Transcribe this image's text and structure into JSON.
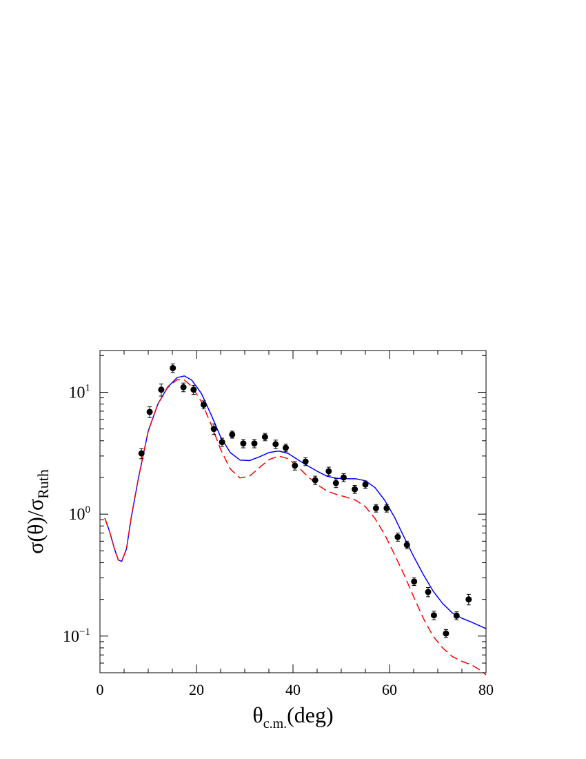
{
  "chart_data": {
    "type": "scatter",
    "xlabel": {
      "main": "θ",
      "sub": "c.m.",
      "suffix": "(deg)"
    },
    "ylabel": {
      "main": "σ(θ)/σ",
      "sub": "Ruth"
    },
    "xlim": [
      0,
      80
    ],
    "ylim": [
      0.05,
      22
    ],
    "yscale": "log",
    "grid": false,
    "x_ticks": [
      {
        "value": 0,
        "label": "0"
      },
      {
        "value": 20,
        "label": "20"
      },
      {
        "value": 40,
        "label": "40"
      },
      {
        "value": 60,
        "label": "60"
      },
      {
        "value": 80,
        "label": "80"
      }
    ],
    "y_ticks": [
      {
        "value": 0.1,
        "base": "10",
        "exp": "−1"
      },
      {
        "value": 1,
        "base": "10",
        "exp": "0"
      },
      {
        "value": 10,
        "base": "10",
        "exp": "1"
      }
    ],
    "series": [
      {
        "kind": "points",
        "color": "#000000",
        "points": [
          {
            "x": 8.6,
            "y": 3.15,
            "err": 0.3
          },
          {
            "x": 10.3,
            "y": 6.9,
            "err": 0.7
          },
          {
            "x": 12.7,
            "y": 10.5,
            "err": 1.2
          },
          {
            "x": 15.1,
            "y": 15.8,
            "err": 1.3
          },
          {
            "x": 17.3,
            "y": 11.0,
            "err": 0.9
          },
          {
            "x": 19.4,
            "y": 10.5,
            "err": 0.9
          },
          {
            "x": 21.5,
            "y": 7.9,
            "err": 0.6
          },
          {
            "x": 23.6,
            "y": 5.0,
            "err": 0.5
          },
          {
            "x": 25.3,
            "y": 3.9,
            "err": 0.3
          },
          {
            "x": 27.4,
            "y": 4.5,
            "err": 0.3
          },
          {
            "x": 29.7,
            "y": 3.8,
            "err": 0.3
          },
          {
            "x": 32.0,
            "y": 3.8,
            "err": 0.3
          },
          {
            "x": 34.2,
            "y": 4.3,
            "err": 0.3
          },
          {
            "x": 36.4,
            "y": 3.75,
            "err": 0.3
          },
          {
            "x": 38.5,
            "y": 3.5,
            "err": 0.25
          },
          {
            "x": 40.4,
            "y": 2.5,
            "err": 0.2
          },
          {
            "x": 42.6,
            "y": 2.7,
            "err": 0.2
          },
          {
            "x": 44.6,
            "y": 1.9,
            "err": 0.15
          },
          {
            "x": 47.4,
            "y": 2.25,
            "err": 0.18
          },
          {
            "x": 48.9,
            "y": 1.8,
            "err": 0.15
          },
          {
            "x": 50.5,
            "y": 2.0,
            "err": 0.15
          },
          {
            "x": 52.8,
            "y": 1.6,
            "err": 0.12
          },
          {
            "x": 55.0,
            "y": 1.75,
            "err": 0.12
          },
          {
            "x": 57.2,
            "y": 1.12,
            "err": 0.08
          },
          {
            "x": 59.4,
            "y": 1.12,
            "err": 0.08
          },
          {
            "x": 61.7,
            "y": 0.65,
            "err": 0.05
          },
          {
            "x": 63.6,
            "y": 0.56,
            "err": 0.04
          },
          {
            "x": 65.1,
            "y": 0.28,
            "err": 0.02
          },
          {
            "x": 68.0,
            "y": 0.23,
            "err": 0.02
          },
          {
            "x": 69.2,
            "y": 0.148,
            "err": 0.012
          },
          {
            "x": 71.7,
            "y": 0.105,
            "err": 0.008
          },
          {
            "x": 73.9,
            "y": 0.147,
            "err": 0.011
          },
          {
            "x": 76.4,
            "y": 0.2,
            "err": 0.02
          }
        ]
      },
      {
        "kind": "line",
        "color": "#0000ff",
        "dash": "solid",
        "points": [
          [
            1,
            0.93
          ],
          [
            2,
            0.72
          ],
          [
            3,
            0.52
          ],
          [
            3.8,
            0.42
          ],
          [
            4.5,
            0.41
          ],
          [
            5.5,
            0.52
          ],
          [
            6.5,
            0.95
          ],
          [
            8,
            2.0
          ],
          [
            10,
            4.8
          ],
          [
            12,
            8.0
          ],
          [
            14,
            11.0
          ],
          [
            16,
            13.2
          ],
          [
            17.5,
            13.6
          ],
          [
            19,
            12.6
          ],
          [
            21,
            9.8
          ],
          [
            23,
            6.6
          ],
          [
            25,
            4.3
          ],
          [
            27,
            3.2
          ],
          [
            29,
            2.78
          ],
          [
            31,
            2.75
          ],
          [
            33,
            2.95
          ],
          [
            35,
            3.2
          ],
          [
            37,
            3.3
          ],
          [
            39,
            3.15
          ],
          [
            41,
            2.8
          ],
          [
            43,
            2.5
          ],
          [
            45,
            2.25
          ],
          [
            47,
            2.05
          ],
          [
            49,
            1.97
          ],
          [
            51,
            1.95
          ],
          [
            53,
            1.95
          ],
          [
            55,
            1.88
          ],
          [
            57,
            1.65
          ],
          [
            59,
            1.3
          ],
          [
            61,
            0.95
          ],
          [
            63,
            0.65
          ],
          [
            65,
            0.45
          ],
          [
            67,
            0.32
          ],
          [
            69,
            0.235
          ],
          [
            71,
            0.185
          ],
          [
            73,
            0.155
          ],
          [
            75,
            0.14
          ],
          [
            77,
            0.13
          ],
          [
            80,
            0.115
          ]
        ]
      },
      {
        "kind": "line",
        "color": "#ff0000",
        "dash": "dashed",
        "points": [
          [
            1,
            0.93
          ],
          [
            2,
            0.72
          ],
          [
            3,
            0.52
          ],
          [
            3.8,
            0.42
          ],
          [
            4.5,
            0.41
          ],
          [
            5.5,
            0.52
          ],
          [
            6.5,
            0.95
          ],
          [
            8,
            2.0
          ],
          [
            10,
            4.8
          ],
          [
            12,
            8.0
          ],
          [
            14,
            10.9
          ],
          [
            16,
            12.7
          ],
          [
            17.5,
            12.6
          ],
          [
            19,
            11.2
          ],
          [
            21,
            8.4
          ],
          [
            23,
            5.5
          ],
          [
            25,
            3.4
          ],
          [
            27,
            2.35
          ],
          [
            29,
            1.98
          ],
          [
            31,
            2.05
          ],
          [
            33,
            2.4
          ],
          [
            35,
            2.8
          ],
          [
            37,
            3.0
          ],
          [
            39,
            2.85
          ],
          [
            41,
            2.45
          ],
          [
            43,
            2.05
          ],
          [
            45,
            1.75
          ],
          [
            47,
            1.55
          ],
          [
            49,
            1.45
          ],
          [
            51,
            1.38
          ],
          [
            53,
            1.3
          ],
          [
            55,
            1.15
          ],
          [
            57,
            0.92
          ],
          [
            59,
            0.68
          ],
          [
            61,
            0.47
          ],
          [
            63,
            0.32
          ],
          [
            65,
            0.21
          ],
          [
            67,
            0.14
          ],
          [
            69,
            0.1
          ],
          [
            71,
            0.08
          ],
          [
            73,
            0.068
          ],
          [
            75,
            0.062
          ],
          [
            77,
            0.058
          ],
          [
            79,
            0.052
          ],
          [
            80,
            0.048
          ]
        ]
      }
    ]
  }
}
